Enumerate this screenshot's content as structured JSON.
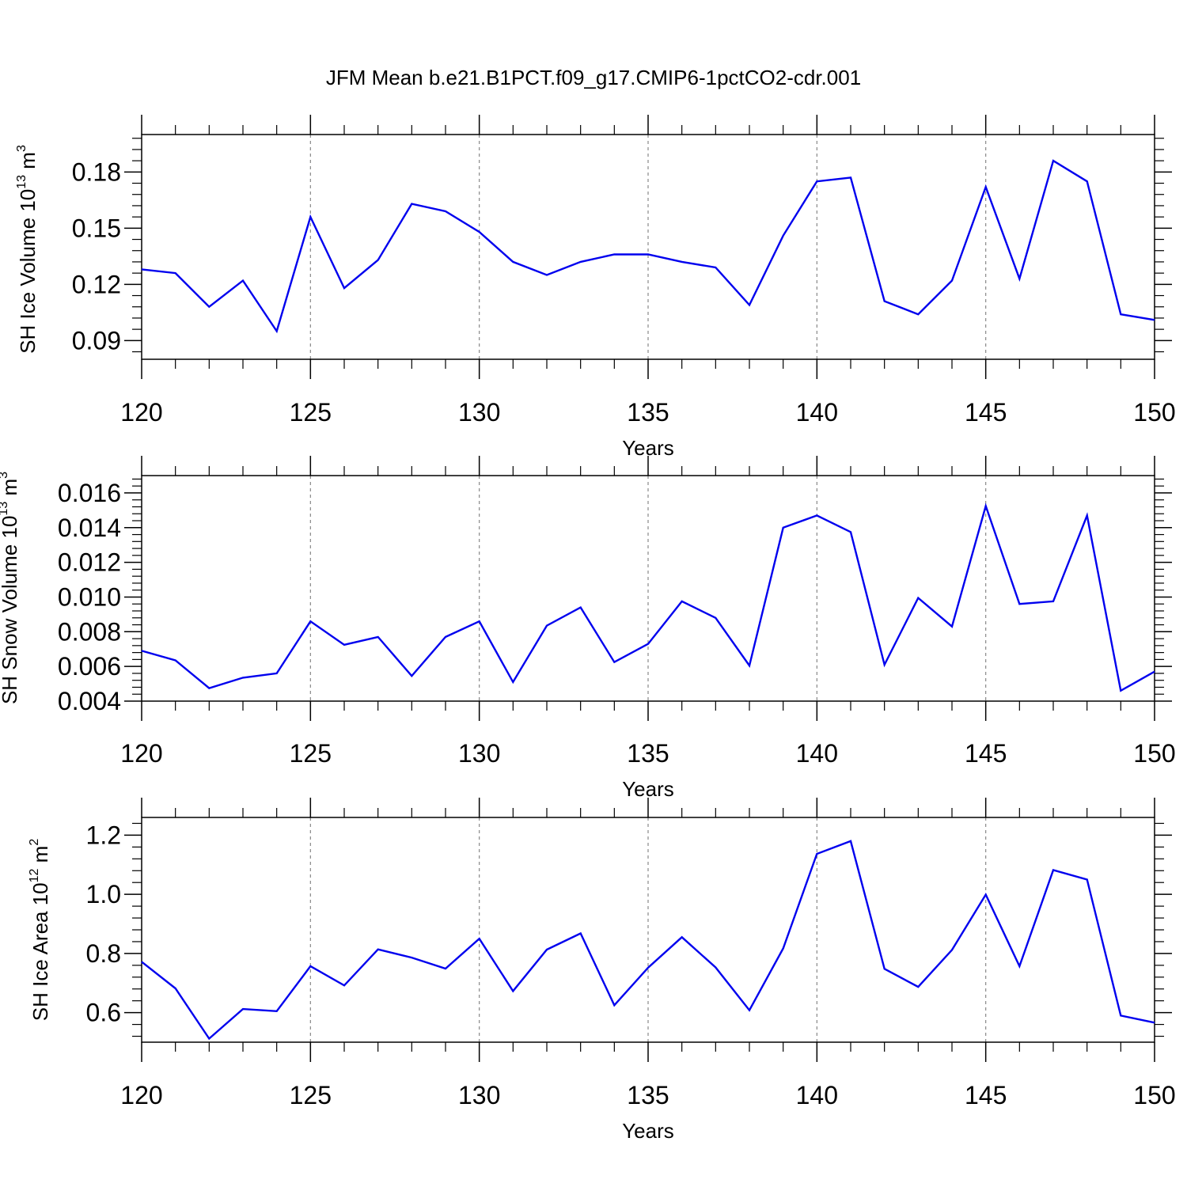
{
  "title": "JFM Mean b.e21.B1PCT.f09_g17.CMIP6-1pctCO2-cdr.001",
  "colors": {
    "line": "#0000ee",
    "axis": "#000000",
    "grid": "#888888"
  },
  "chart_data": [
    {
      "type": "line",
      "ylabel_main": "SH Ice Volume 10",
      "ylabel_exp": "13",
      "ylabel_unit": " m",
      "ylabel_unit_exp": "3",
      "xlabel": "Years",
      "xlim": [
        120,
        150
      ],
      "ylim": [
        0.08,
        0.2
      ],
      "yticks": [
        0.09,
        0.12,
        0.15,
        0.18
      ],
      "ytick_labels": [
        "0.09",
        "0.12",
        "0.15",
        "0.18"
      ],
      "xticks": [
        120,
        125,
        130,
        135,
        140,
        145,
        150
      ],
      "xtick_labels": [
        "120",
        "125",
        "130",
        "135",
        "140",
        "145",
        "150"
      ],
      "grid_x": [
        125,
        130,
        135,
        140,
        145
      ],
      "x": [
        120,
        121,
        122,
        123,
        124,
        125,
        126,
        127,
        128,
        129,
        130,
        131,
        132,
        133,
        134,
        135,
        136,
        137,
        138,
        139,
        140,
        141,
        142,
        143,
        144,
        145,
        146,
        147,
        148,
        149,
        150
      ],
      "values": [
        0.128,
        0.126,
        0.108,
        0.122,
        0.095,
        0.156,
        0.118,
        0.133,
        0.163,
        0.159,
        0.148,
        0.132,
        0.125,
        0.132,
        0.136,
        0.136,
        0.132,
        0.129,
        0.109,
        0.146,
        0.175,
        0.177,
        0.111,
        0.104,
        0.122,
        0.172,
        0.123,
        0.186,
        0.175,
        0.104,
        0.101
      ]
    },
    {
      "type": "line",
      "ylabel_main": "SH Snow Volume 10",
      "ylabel_exp": "13",
      "ylabel_unit": " m",
      "ylabel_unit_exp": "3",
      "xlabel": "Years",
      "xlim": [
        120,
        150
      ],
      "ylim": [
        0.004,
        0.017
      ],
      "yticks": [
        0.004,
        0.006,
        0.008,
        0.01,
        0.012,
        0.014,
        0.016
      ],
      "ytick_labels": [
        "0.004",
        "0.006",
        "0.008",
        "0.010",
        "0.012",
        "0.014",
        "0.016"
      ],
      "xticks": [
        120,
        125,
        130,
        135,
        140,
        145,
        150
      ],
      "xtick_labels": [
        "120",
        "125",
        "130",
        "135",
        "140",
        "145",
        "150"
      ],
      "grid_x": [
        125,
        130,
        135,
        140,
        145
      ],
      "x": [
        120,
        121,
        122,
        123,
        124,
        125,
        126,
        127,
        128,
        129,
        130,
        131,
        132,
        133,
        134,
        135,
        136,
        137,
        138,
        139,
        140,
        141,
        142,
        143,
        144,
        145,
        146,
        147,
        148,
        149,
        150
      ],
      "values": [
        0.0069,
        0.00635,
        0.00475,
        0.00535,
        0.0056,
        0.0086,
        0.00725,
        0.0077,
        0.00545,
        0.0077,
        0.0086,
        0.0051,
        0.00835,
        0.0094,
        0.00625,
        0.0073,
        0.00975,
        0.0088,
        0.00605,
        0.014,
        0.0147,
        0.01375,
        0.0061,
        0.00995,
        0.0083,
        0.01525,
        0.0096,
        0.00975,
        0.0147,
        0.0046,
        0.0057
      ]
    },
    {
      "type": "line",
      "ylabel_main": "SH Ice Area 10",
      "ylabel_exp": "12",
      "ylabel_unit": " m",
      "ylabel_unit_exp": "2",
      "xlabel": "Years",
      "xlim": [
        120,
        150
      ],
      "ylim": [
        0.5,
        1.26
      ],
      "yticks": [
        0.6,
        0.8,
        1.0,
        1.2
      ],
      "ytick_labels": [
        "0.6",
        "0.8",
        "1.0",
        "1.2"
      ],
      "xticks": [
        120,
        125,
        130,
        135,
        140,
        145,
        150
      ],
      "xtick_labels": [
        "120",
        "125",
        "130",
        "135",
        "140",
        "145",
        "150"
      ],
      "grid_x": [
        125,
        130,
        135,
        140,
        145
      ],
      "x": [
        120,
        121,
        122,
        123,
        124,
        125,
        126,
        127,
        128,
        129,
        130,
        131,
        132,
        133,
        134,
        135,
        136,
        137,
        138,
        139,
        140,
        141,
        142,
        143,
        144,
        145,
        146,
        147,
        148,
        149,
        150
      ],
      "values": [
        0.772,
        0.682,
        0.512,
        0.612,
        0.605,
        0.757,
        0.692,
        0.814,
        0.786,
        0.749,
        0.85,
        0.673,
        0.813,
        0.868,
        0.625,
        0.752,
        0.855,
        0.753,
        0.608,
        0.817,
        1.137,
        1.18,
        0.748,
        0.687,
        0.812,
        0.999,
        0.757,
        1.082,
        1.05,
        0.59,
        0.566
      ]
    }
  ]
}
